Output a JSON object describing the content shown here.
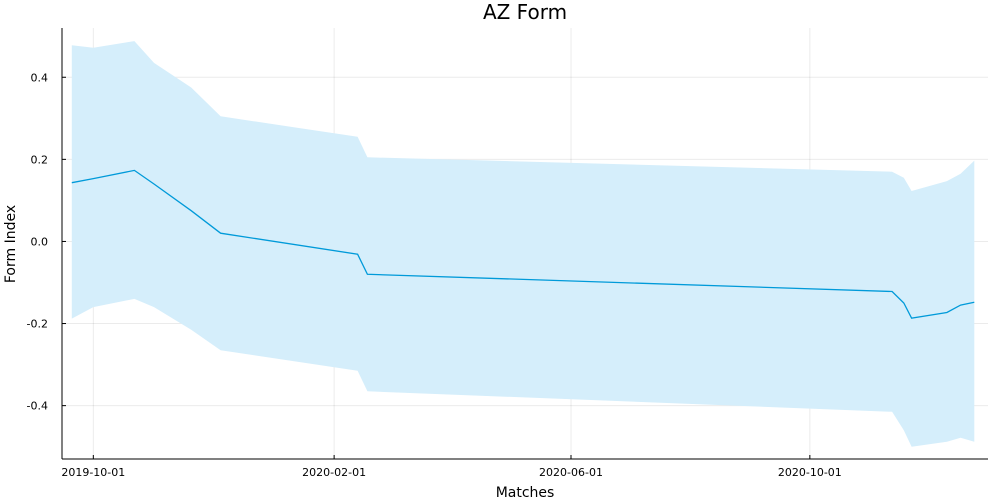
{
  "chart_data": {
    "type": "line",
    "title": "AZ Form",
    "xlabel": "Matches",
    "ylabel": "Form Index",
    "x_type": "date",
    "xlim": [
      "2019-09-15",
      "2020-12-31"
    ],
    "ylim": [
      -0.53,
      0.52
    ],
    "x_ticks": [
      "2019-10-01",
      "2020-02-01",
      "2020-06-01",
      "2020-10-01"
    ],
    "y_ticks": [
      -0.4,
      -0.2,
      0.0,
      0.2,
      0.4
    ],
    "y_tick_labels": [
      "-0.4",
      "-0.2",
      "0.0",
      "0.2",
      "0.4"
    ],
    "grid": true,
    "legend": "none",
    "colors": {
      "line": "#009AD9",
      "band": "#D5EEFB"
    },
    "series": [
      {
        "x": [
          "2019-09-20",
          "2019-10-01",
          "2019-10-22",
          "2019-11-01",
          "2019-11-20",
          "2019-12-05",
          "2020-02-13",
          "2020-02-18",
          "2020-11-12",
          "2020-11-18",
          "2020-11-22",
          "2020-12-10",
          "2020-12-17",
          "2020-12-24"
        ],
        "y": [
          0.143,
          0.153,
          0.173,
          0.14,
          0.075,
          0.02,
          -0.031,
          -0.08,
          -0.122,
          -0.15,
          -0.187,
          -0.173,
          -0.155,
          -0.148
        ],
        "lower": [
          -0.188,
          -0.16,
          -0.14,
          -0.16,
          -0.215,
          -0.265,
          -0.315,
          -0.365,
          -0.415,
          -0.46,
          -0.5,
          -0.488,
          -0.478,
          -0.488
        ],
        "upper": [
          0.478,
          0.472,
          0.488,
          0.435,
          0.375,
          0.305,
          0.255,
          0.205,
          0.17,
          0.155,
          0.123,
          0.147,
          0.165,
          0.197
        ]
      }
    ]
  }
}
